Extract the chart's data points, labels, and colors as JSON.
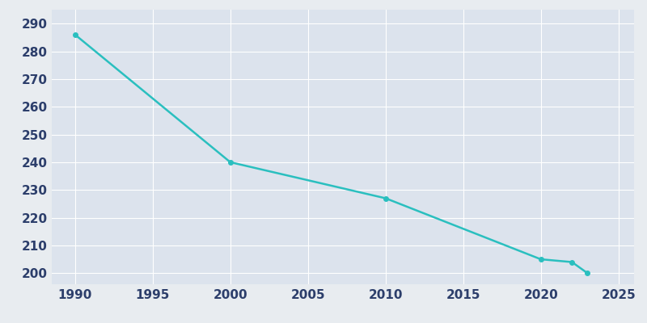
{
  "years": [
    1990,
    2000,
    2010,
    2020,
    2022,
    2023
  ],
  "population": [
    286,
    240,
    227,
    205,
    204,
    200
  ],
  "line_color": "#2abfbf",
  "marker_color": "#2abfbf",
  "background_color": "#e8ecf0",
  "plot_bg_color": "#dce3ed",
  "grid_color": "#ffffff",
  "tick_color": "#2c3e6b",
  "xlim": [
    1988.5,
    2026
  ],
  "ylim": [
    196,
    295
  ],
  "yticks": [
    200,
    210,
    220,
    230,
    240,
    250,
    260,
    270,
    280,
    290
  ],
  "xticks": [
    1990,
    1995,
    2000,
    2005,
    2010,
    2015,
    2020,
    2025
  ],
  "line_width": 1.8,
  "marker_size": 4
}
